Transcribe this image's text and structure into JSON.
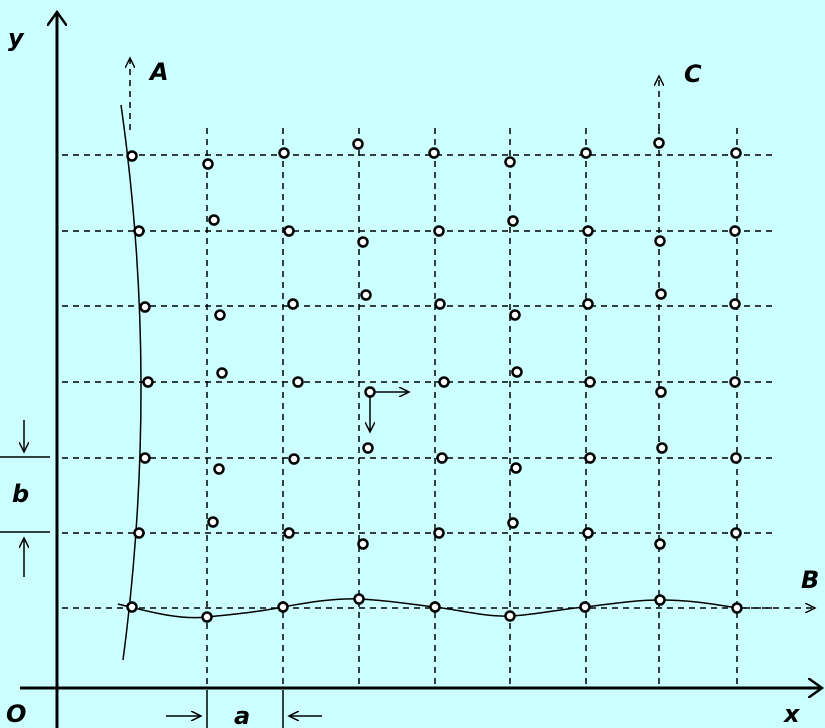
{
  "labels": {
    "y_axis": "y",
    "x_axis": "x",
    "origin": "O",
    "arrow_A": "A",
    "arrow_B": "B",
    "arrow_C": "C",
    "spacing_a": "a",
    "spacing_b": "b"
  },
  "colors": {
    "background": "#ccffff",
    "ink": "#000000",
    "node_fill": "#ffffff"
  }
}
